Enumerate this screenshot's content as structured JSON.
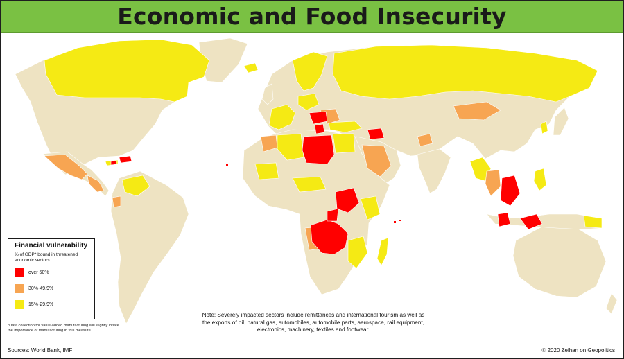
{
  "title": "Economic and Food Insecurity",
  "legend": {
    "title": "Financial vulnerability",
    "subtitle": "% of GDP* bound in threatened economic sectors",
    "items": [
      {
        "label": "over 50%",
        "color": "#ff0000"
      },
      {
        "label": "30%-49.9%",
        "color": "#f7a552"
      },
      {
        "label": "15%-29.9%",
        "color": "#f5ea14"
      }
    ]
  },
  "colors": {
    "base_land": "#eee3c2",
    "ocean": "#ffffff",
    "header": "#7ac143",
    "over_50": "#ff0000",
    "range_30_50": "#f7a552",
    "range_15_30": "#f5ea14"
  },
  "footnote": "*Data collection for value-added manufacturing will slightly inflate the importance of manufacturing in this measure.",
  "sources": "Sources: World Bank, IMF",
  "note": "Note: Severely impacted sectors include remittances and international tourism as well as the exports of oil, natural gas, automobiles, automobile parts, aerospace, rail equipment, electronics, machinery, textiles and footwear.",
  "copyright": "© 2020 Zeihan on Geopolitics"
}
